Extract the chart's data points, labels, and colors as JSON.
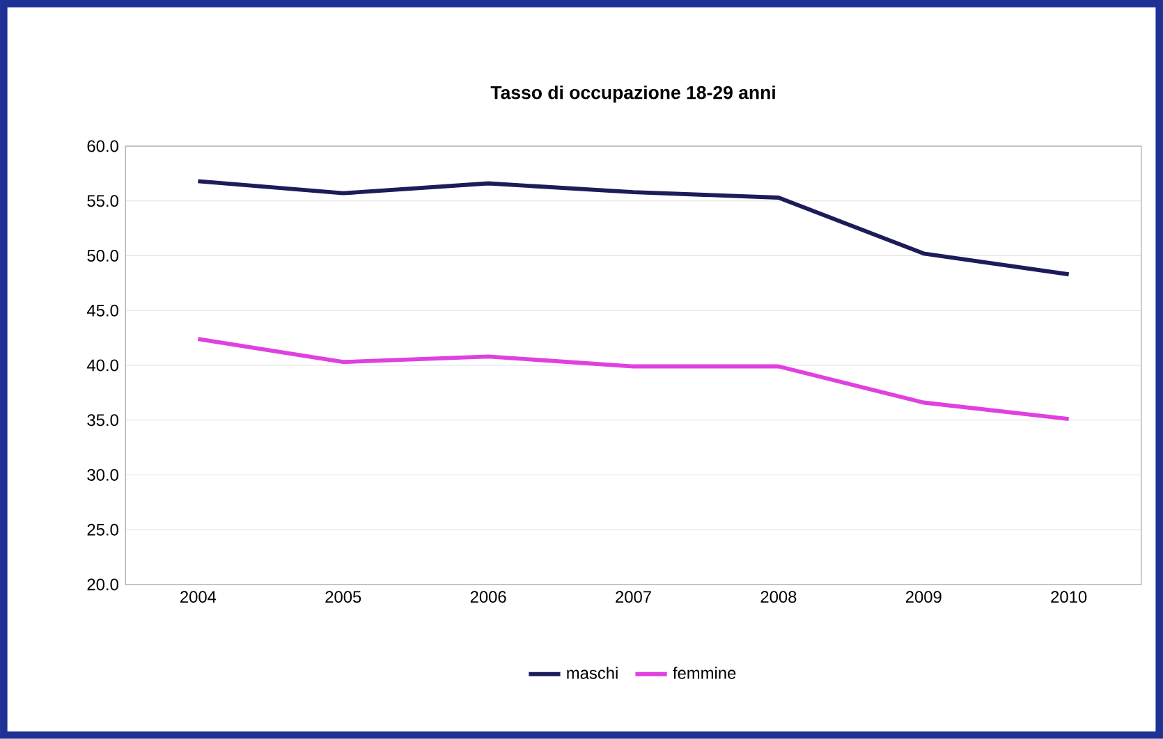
{
  "chart_data": {
    "type": "line",
    "title": "Tasso di occupazione 18-29 anni",
    "categories": [
      "2004",
      "2005",
      "2006",
      "2007",
      "2008",
      "2009",
      "2010"
    ],
    "series": [
      {
        "name": "maschi",
        "color": "#1c1c5a",
        "values": [
          56.8,
          55.7,
          56.6,
          55.8,
          55.3,
          50.2,
          48.3
        ]
      },
      {
        "name": "femmine",
        "color": "#e040e0",
        "values": [
          42.4,
          40.3,
          40.8,
          39.9,
          39.9,
          36.6,
          35.1
        ]
      }
    ],
    "ylim": [
      20,
      60
    ],
    "yticks": [
      {
        "value": 60,
        "label": "60.0"
      },
      {
        "value": 55,
        "label": "55.0"
      },
      {
        "value": 50,
        "label": "50.0"
      },
      {
        "value": 45,
        "label": "45.0"
      },
      {
        "value": 40,
        "label": "40.0"
      },
      {
        "value": 35,
        "label": "35.0"
      },
      {
        "value": 30,
        "label": "30.0"
      },
      {
        "value": 25,
        "label": "25.0"
      },
      {
        "value": 20,
        "label": "20.0"
      }
    ],
    "grid": "y",
    "legend": "bottom",
    "marker": "none",
    "line_style": "solid"
  }
}
